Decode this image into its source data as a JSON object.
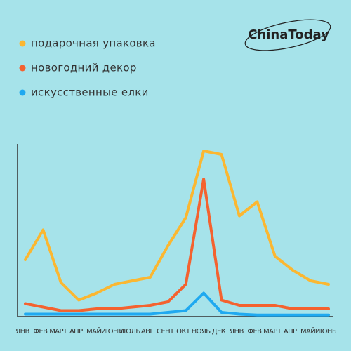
{
  "chart_data": {
    "type": "line",
    "logo": "ChinaToday",
    "categories": [
      "ЯНВ",
      "ФЕВ",
      "МАРТ",
      "АПР",
      "МАЙ",
      "ИЮНЬ",
      "ИЮЛЬ",
      "АВГ",
      "СЕНТ",
      "ОКТ",
      "НОЯБ",
      "ДЕК",
      "ЯНВ",
      "ФЕВ",
      "МАРТ",
      "АПР",
      "МАЙ",
      "ИЮНЬ"
    ],
    "series": [
      {
        "name": "подарочная упаковка",
        "color": "#fbb731",
        "values": [
          32,
          49,
          19,
          9,
          13,
          18,
          20,
          22,
          40,
          56,
          94,
          92,
          57,
          65,
          34,
          26,
          20,
          18
        ]
      },
      {
        "name": "новогодний декор",
        "color": "#f4622f",
        "values": [
          7,
          5,
          3,
          3,
          4,
          4,
          5,
          6,
          8,
          18,
          78,
          9,
          6,
          6,
          6,
          4,
          4,
          4
        ]
      },
      {
        "name": "искусственные елки",
        "color": "#1fa9f0",
        "values": [
          1,
          1,
          1,
          1,
          1,
          1,
          1,
          1,
          2,
          3,
          13,
          2,
          1,
          0.5,
          0.5,
          0.5,
          0.5,
          0.5
        ]
      }
    ],
    "ylim": [
      0,
      100
    ]
  }
}
